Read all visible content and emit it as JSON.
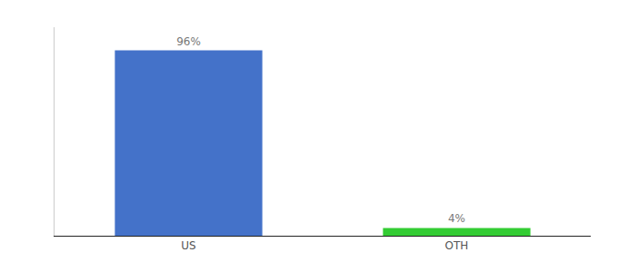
{
  "chart_data": {
    "type": "bar",
    "categories": [
      "US",
      "OTH"
    ],
    "values": [
      96,
      4
    ],
    "value_labels": [
      "96%",
      "4%"
    ],
    "data_labels": true,
    "colors": [
      "#4472c9",
      "#33cc33"
    ],
    "ylim": [
      0,
      108
    ],
    "grid": false,
    "tick_labels": "x"
  }
}
